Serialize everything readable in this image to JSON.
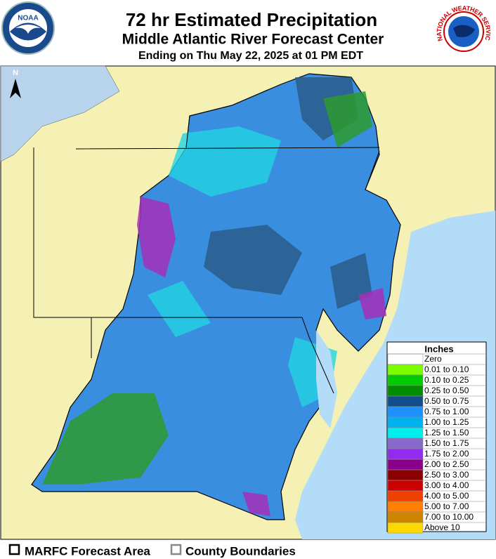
{
  "header": {
    "title": "72 hr Estimated Precipitation",
    "subtitle": "Middle Atlantic River Forecast Center",
    "period": "Ending on Thu May 22, 2025 at 01 PM EDT"
  },
  "logos": {
    "noaa": "NOAA",
    "nws": "NATIONAL WEATHER SERVICE"
  },
  "map": {
    "north_label": "N"
  },
  "legend": {
    "title": "Inches",
    "items": [
      {
        "label": "Zero",
        "color": "#ffffff"
      },
      {
        "label": "0.01 to 0.10",
        "color": "#7cfc00"
      },
      {
        "label": "0.10 to 0.25",
        "color": "#00cd00"
      },
      {
        "label": "0.25 to 0.50",
        "color": "#008b00"
      },
      {
        "label": "0.50 to 0.75",
        "color": "#104e8b"
      },
      {
        "label": "0.75 to 1.00",
        "color": "#1e90ff"
      },
      {
        "label": "1.00 to 1.25",
        "color": "#00b2ee"
      },
      {
        "label": "1.25 to 1.50",
        "color": "#00eeee"
      },
      {
        "label": "1.50 to 1.75",
        "color": "#8968cd"
      },
      {
        "label": "1.75 to 2.00",
        "color": "#912cee"
      },
      {
        "label": "2.00 to 2.50",
        "color": "#8b008b"
      },
      {
        "label": "2.50 to 3.00",
        "color": "#8b0000"
      },
      {
        "label": "3.00 to 4.00",
        "color": "#cd0000"
      },
      {
        "label": "4.00 to 5.00",
        "color": "#ee4000"
      },
      {
        "label": "5.00 to 7.00",
        "color": "#ff7f00"
      },
      {
        "label": "7.00 to 10.00",
        "color": "#cd8500"
      },
      {
        "label": "Above 10",
        "color": "#ffd700"
      }
    ]
  },
  "footer": {
    "items": [
      "MARFC Forecast Area",
      "County Boundaries"
    ]
  }
}
